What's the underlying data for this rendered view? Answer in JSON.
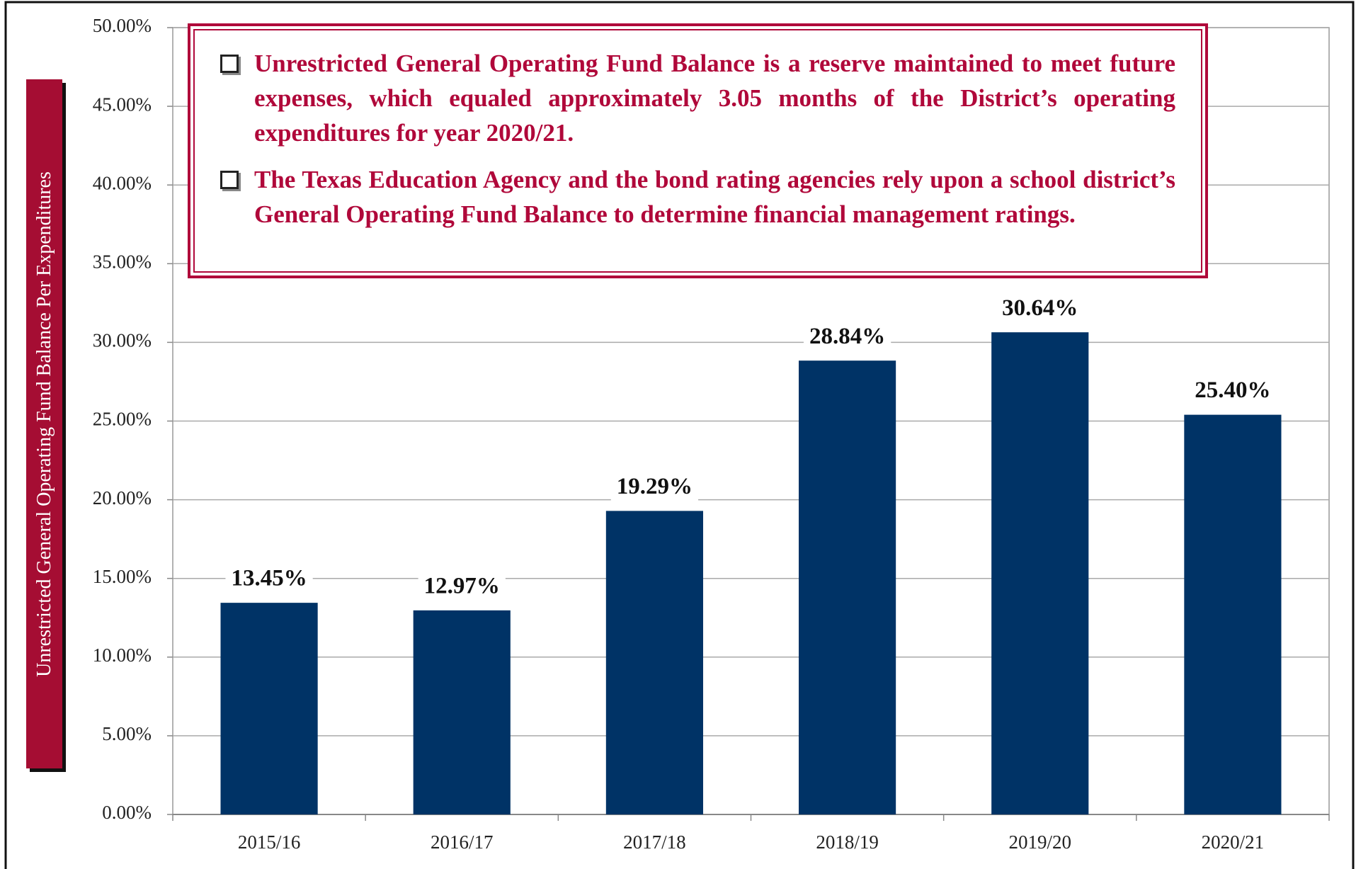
{
  "chart_data": {
    "type": "bar",
    "y_label": "Unrestricted General Operating Fund Balance Per Expenditures",
    "annotations": [
      "Unrestricted General Operating Fund Balance is a reserve maintained to meet future expenses, which equaled approximately 3.05 months of the District’s operating expenditures for year 2020/21.",
      "The Texas Education Agency and the bond rating agencies rely upon a school district’s General Operating Fund Balance to determine financial management ratings."
    ],
    "categories": [
      "2015/16",
      "2016/17",
      "2017/18",
      "2018/19",
      "2019/20",
      "2020/21"
    ],
    "values": [
      13.45,
      12.97,
      19.29,
      28.84,
      30.64,
      25.4
    ],
    "value_labels": [
      "13.45%",
      "12.97%",
      "19.29%",
      "28.84%",
      "30.64%",
      "25.40%"
    ],
    "color": "#003366",
    "ylim": [
      0,
      50
    ],
    "yticks": [
      {
        "value": 0,
        "label": "0.00%"
      },
      {
        "value": 5,
        "label": "5.00%"
      },
      {
        "value": 10,
        "label": "10.00%"
      },
      {
        "value": 15,
        "label": "15.00%"
      },
      {
        "value": 20,
        "label": "20.00%"
      },
      {
        "value": 25,
        "label": "25.00%"
      },
      {
        "value": 30,
        "label": "30.00%"
      },
      {
        "value": 35,
        "label": "35.00%"
      },
      {
        "value": 40,
        "label": "40.00%"
      },
      {
        "value": 45,
        "label": "45.00%"
      },
      {
        "value": 50,
        "label": "50.00%"
      }
    ],
    "grid": true
  }
}
